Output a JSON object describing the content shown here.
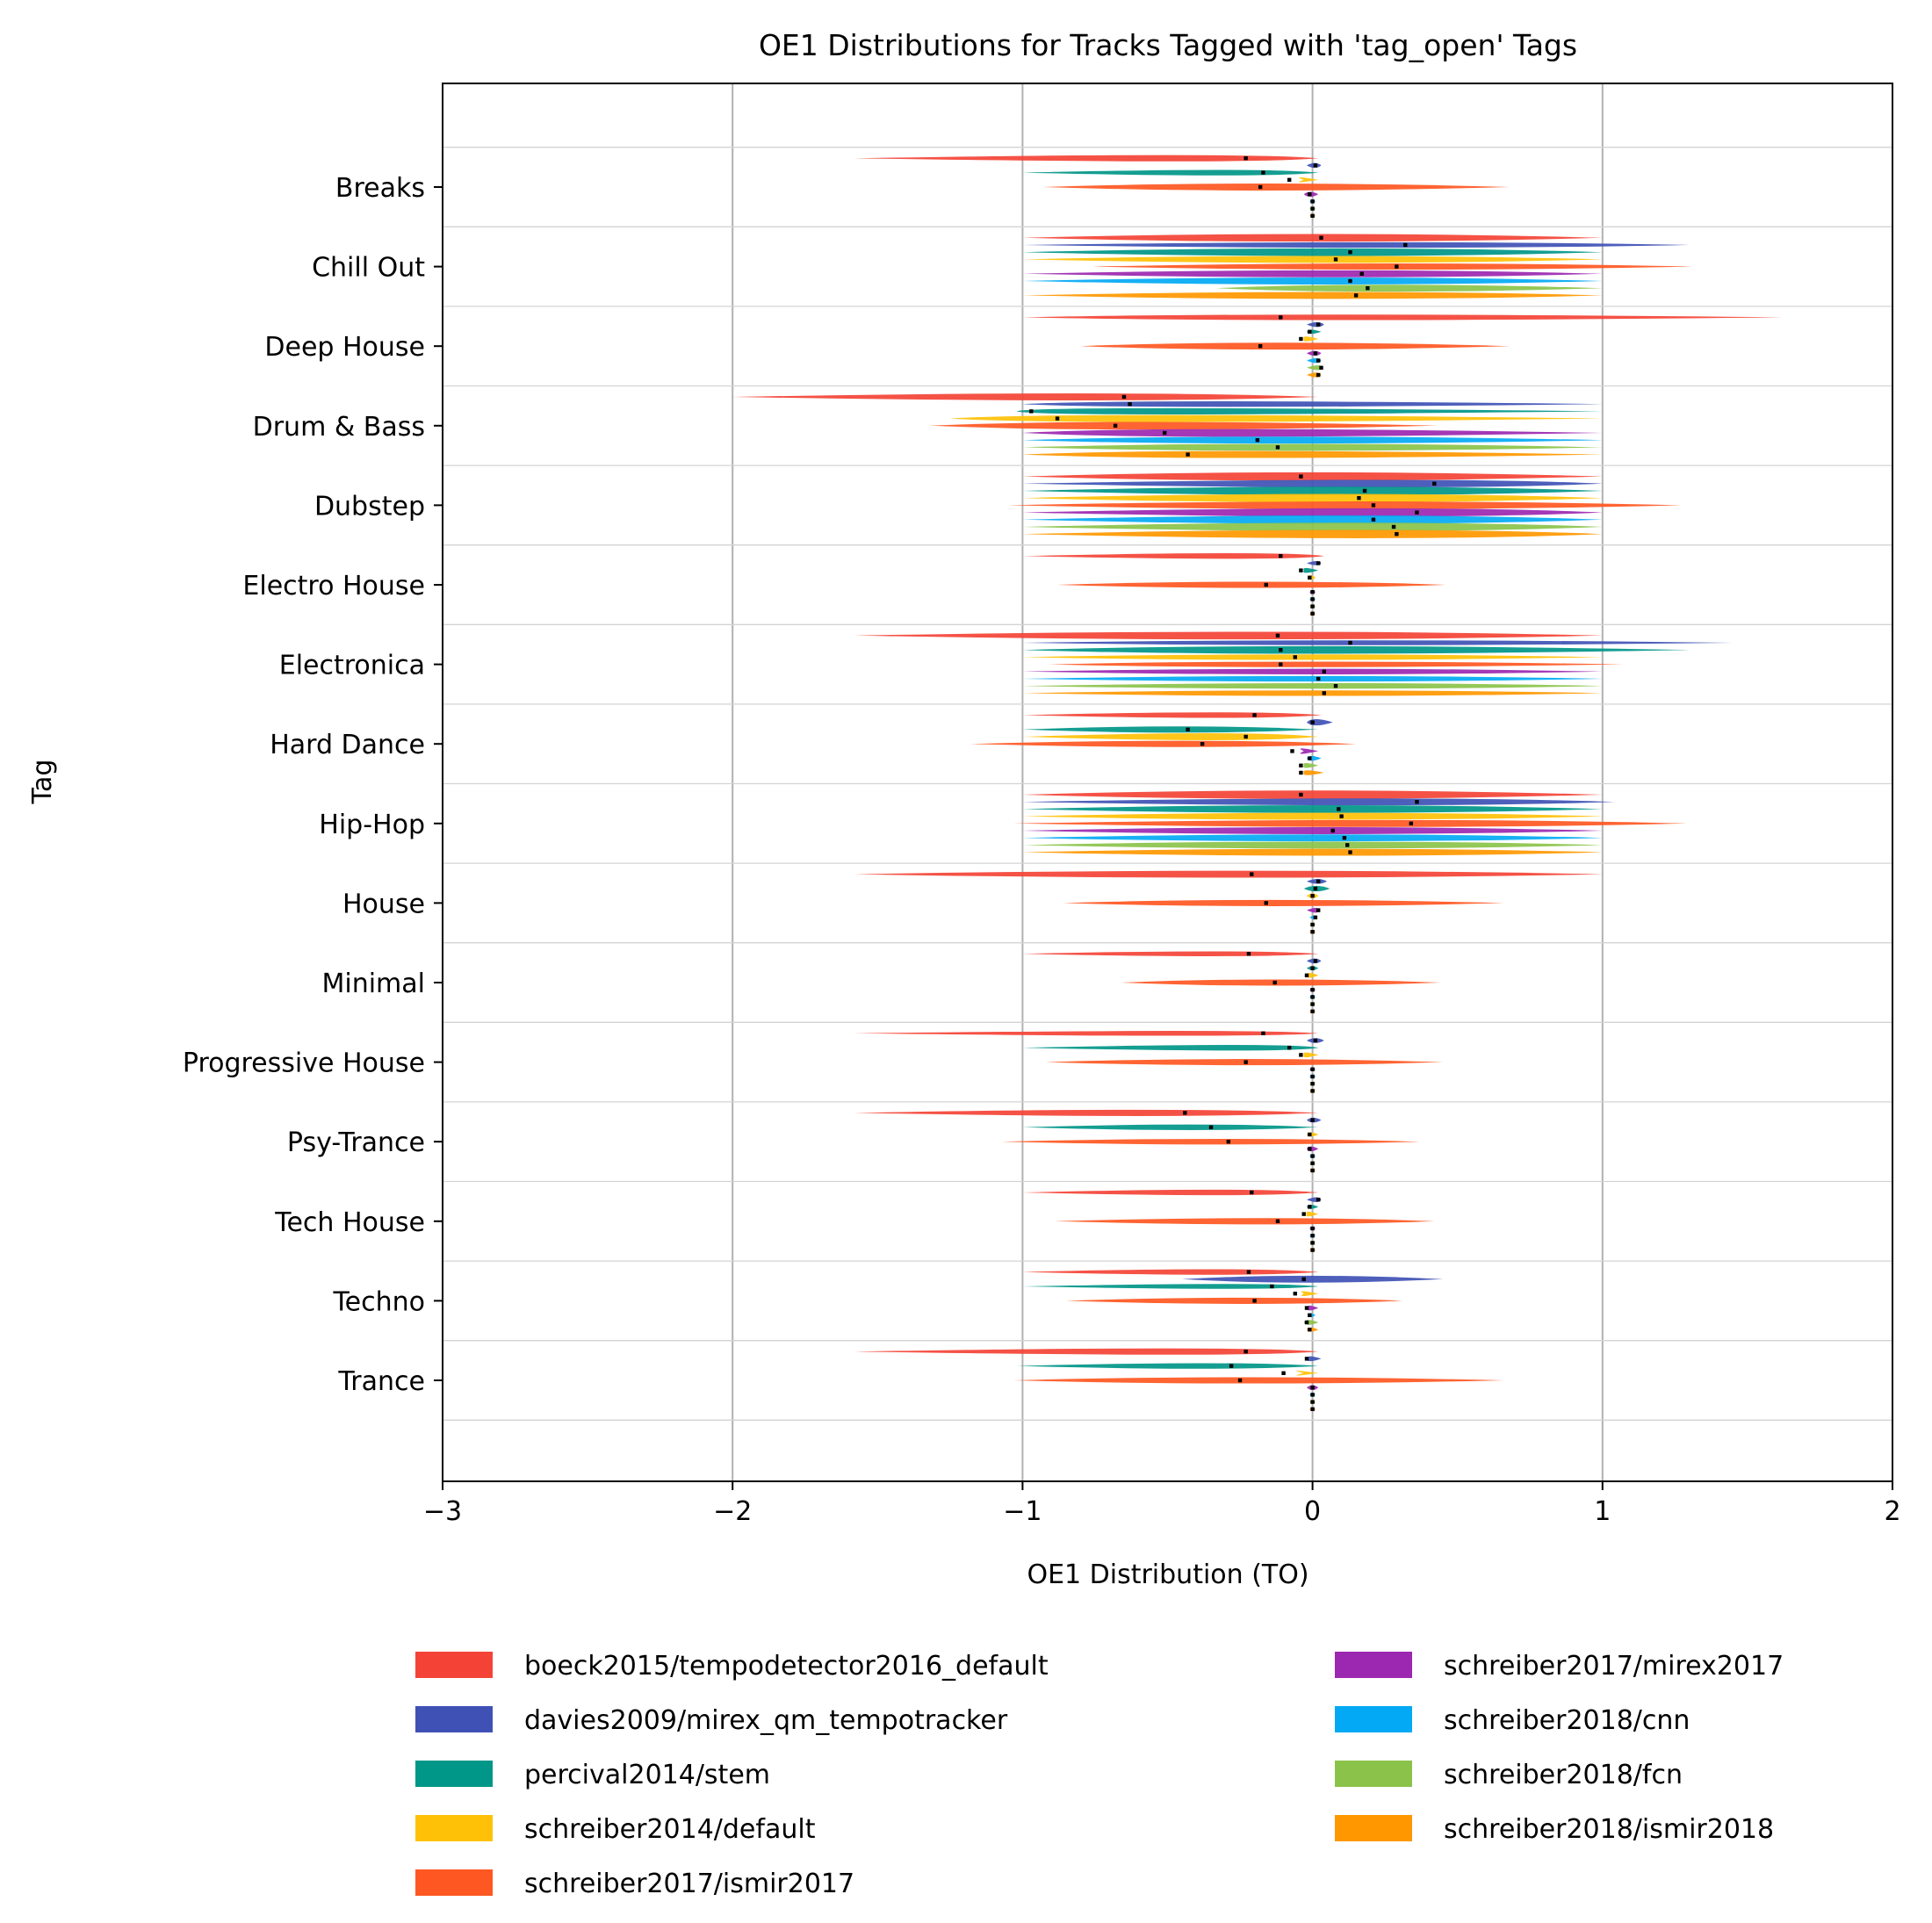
{
  "chart_data": {
    "type": "violin",
    "title": "OE1 Distributions for Tracks Tagged with 'tag_open' Tags",
    "xlabel": "OE1 Distribution (TO)",
    "ylabel": "Tag",
    "xlim": [
      -3,
      2
    ],
    "xticks": [
      -3,
      -2,
      -1,
      0,
      1,
      2
    ],
    "xtick_labels": [
      "−3",
      "−2",
      "−1",
      "0",
      "1",
      "2"
    ],
    "grid": "vertical major + horizontal separators",
    "legend_position": "bottom-center, 2 columns",
    "categories": [
      "Breaks",
      "Chill Out",
      "Deep House",
      "Drum & Bass",
      "Dubstep",
      "Electro House",
      "Electronica",
      "Hard Dance",
      "Hip-Hop",
      "House",
      "Minimal",
      "Progressive House",
      "Psy-Trance",
      "Tech House",
      "Techno",
      "Trance"
    ],
    "series": [
      {
        "name": "boeck2015/tempodetector2016_default",
        "color": "#f44336",
        "medians": [
          -0.23,
          0.03,
          -0.11,
          -0.65,
          -0.04,
          -0.11,
          -0.12,
          -0.2,
          -0.04,
          -0.21,
          -0.22,
          -0.17,
          -0.44,
          -0.21,
          -0.22,
          -0.23
        ],
        "ranges": [
          [
            -1.58,
            0.02
          ],
          [
            -1.0,
            1.0
          ],
          [
            -1.0,
            1.62
          ],
          [
            -2.0,
            0.02
          ],
          [
            -1.0,
            1.0
          ],
          [
            -1.0,
            0.04
          ],
          [
            -1.58,
            1.0
          ],
          [
            -1.0,
            0.03
          ],
          [
            -1.0,
            1.0
          ],
          [
            -1.58,
            1.0
          ],
          [
            -1.0,
            0.02
          ],
          [
            -1.58,
            0.02
          ],
          [
            -1.58,
            0.02
          ],
          [
            -1.0,
            0.02
          ],
          [
            -1.0,
            0.02
          ],
          [
            -1.58,
            0.02
          ]
        ],
        "widths": [
          0.7,
          0.9,
          0.6,
          0.8,
          1.0,
          0.6,
          0.9,
          0.6,
          1.0,
          0.8,
          0.5,
          0.5,
          0.7,
          0.6,
          0.6,
          0.7
        ]
      },
      {
        "name": "davies2009/mirex_qm_tempotracker",
        "color": "#3f51b5",
        "medians": [
          0.01,
          0.32,
          0.02,
          -0.63,
          0.42,
          0.02,
          0.13,
          0.0,
          0.36,
          0.02,
          0.01,
          0.01,
          0.0,
          0.02,
          -0.03,
          -0.02
        ],
        "ranges": [
          [
            -0.02,
            0.03
          ],
          [
            -1.0,
            1.3
          ],
          [
            -0.02,
            0.04
          ],
          [
            -1.0,
            1.0
          ],
          [
            -1.0,
            1.0
          ],
          [
            -0.02,
            0.03
          ],
          [
            -1.0,
            1.45
          ],
          [
            -0.02,
            0.07
          ],
          [
            -1.0,
            1.04
          ],
          [
            -0.02,
            0.05
          ],
          [
            -0.02,
            0.03
          ],
          [
            -0.02,
            0.04
          ],
          [
            -0.02,
            0.03
          ],
          [
            -0.02,
            0.03
          ],
          [
            -0.45,
            0.45
          ],
          [
            -0.02,
            0.03
          ]
        ],
        "widths": [
          0.5,
          0.6,
          0.5,
          0.6,
          0.9,
          0.4,
          0.5,
          0.7,
          0.8,
          0.5,
          0.5,
          0.5,
          0.5,
          0.5,
          0.8,
          0.5
        ]
      },
      {
        "name": "percival2014/stem",
        "color": "#009688",
        "medians": [
          -0.17,
          0.13,
          -0.01,
          -0.97,
          0.18,
          -0.04,
          -0.11,
          -0.43,
          0.09,
          0.01,
          0.0,
          -0.08,
          -0.35,
          -0.01,
          -0.14,
          -0.28
        ],
        "ranges": [
          [
            -1.0,
            0.02
          ],
          [
            -1.0,
            1.0
          ],
          [
            -0.02,
            0.03
          ],
          [
            -1.02,
            1.0
          ],
          [
            -1.0,
            1.0
          ],
          [
            -0.03,
            0.02
          ],
          [
            -1.0,
            1.3
          ],
          [
            -1.0,
            0.02
          ],
          [
            -1.0,
            1.0
          ],
          [
            -0.03,
            0.06
          ],
          [
            -0.02,
            0.02
          ],
          [
            -1.0,
            0.02
          ],
          [
            -1.0,
            0.02
          ],
          [
            -0.02,
            0.02
          ],
          [
            -1.0,
            0.02
          ],
          [
            -1.02,
            0.02
          ]
        ],
        "widths": [
          0.6,
          0.9,
          0.4,
          0.7,
          1.0,
          0.5,
          0.9,
          0.7,
          0.9,
          0.6,
          0.4,
          0.6,
          0.6,
          0.4,
          0.5,
          0.6
        ]
      },
      {
        "name": "schreiber2014/default",
        "color": "#ffc107",
        "medians": [
          -0.08,
          0.08,
          -0.04,
          -0.88,
          0.16,
          -0.01,
          -0.06,
          -0.23,
          0.1,
          0.0,
          -0.02,
          -0.04,
          -0.01,
          -0.03,
          -0.06,
          -0.1
        ],
        "ranges": [
          [
            -0.03,
            0.02
          ],
          [
            -1.0,
            1.0
          ],
          [
            -0.03,
            0.02
          ],
          [
            -1.25,
            1.0
          ],
          [
            -1.0,
            1.0
          ],
          [
            -0.01,
            0.01
          ],
          [
            -1.0,
            1.0
          ],
          [
            -1.0,
            0.02
          ],
          [
            -1.0,
            1.0
          ],
          [
            -0.02,
            0.02
          ],
          [
            -0.02,
            0.02
          ],
          [
            -0.03,
            0.02
          ],
          [
            -0.02,
            0.02
          ],
          [
            -0.02,
            0.02
          ],
          [
            -0.03,
            0.02
          ],
          [
            -0.03,
            0.02
          ]
        ],
        "widths": [
          0.5,
          0.8,
          0.5,
          0.8,
          1.0,
          0.5,
          0.6,
          0.8,
          0.8,
          0.5,
          0.5,
          0.5,
          0.4,
          0.5,
          0.5,
          0.5
        ]
      },
      {
        "name": "schreiber2017/ismir2017",
        "color": "#ff5722",
        "medians": [
          -0.18,
          0.29,
          -0.18,
          -0.68,
          0.21,
          -0.16,
          -0.11,
          -0.38,
          0.34,
          -0.16,
          -0.13,
          -0.23,
          -0.29,
          -0.12,
          -0.2,
          -0.25
        ],
        "ranges": [
          [
            -0.93,
            0.68
          ],
          [
            -0.76,
            1.31
          ],
          [
            -0.8,
            0.68
          ],
          [
            -1.32,
            0.43
          ],
          [
            -1.05,
            1.27
          ],
          [
            -0.88,
            0.46
          ],
          [
            -0.91,
            1.07
          ],
          [
            -1.18,
            0.15
          ],
          [
            -1.03,
            1.29
          ],
          [
            -0.86,
            0.66
          ],
          [
            -0.66,
            0.44
          ],
          [
            -0.92,
            0.45
          ],
          [
            -1.07,
            0.37
          ],
          [
            -0.89,
            0.42
          ],
          [
            -0.85,
            0.31
          ],
          [
            -1.03,
            0.66
          ]
        ],
        "widths": [
          0.8,
          0.7,
          0.8,
          0.9,
          0.9,
          0.7,
          0.6,
          0.7,
          0.8,
          0.7,
          0.7,
          0.7,
          0.6,
          0.7,
          0.7,
          0.7
        ]
      },
      {
        "name": "schreiber2017/mirex2017",
        "color": "#9c27b0",
        "medians": [
          -0.01,
          0.17,
          0.01,
          -0.51,
          0.36,
          0.0,
          0.04,
          -0.07,
          0.07,
          0.02,
          0.0,
          0.0,
          -0.01,
          0.0,
          -0.02,
          0.0
        ],
        "ranges": [
          [
            -0.03,
            0.02
          ],
          [
            -1.0,
            1.0
          ],
          [
            -0.02,
            0.03
          ],
          [
            -1.0,
            1.0
          ],
          [
            -1.0,
            1.0
          ],
          [
            -0.01,
            0.01
          ],
          [
            -1.0,
            1.0
          ],
          [
            -0.03,
            0.02
          ],
          [
            -1.0,
            1.0
          ],
          [
            -0.02,
            0.02
          ],
          [
            -0.01,
            0.01
          ],
          [
            -0.01,
            0.01
          ],
          [
            -0.02,
            0.02
          ],
          [
            -0.01,
            0.01
          ],
          [
            -0.02,
            0.02
          ],
          [
            -0.02,
            0.02
          ]
        ],
        "widths": [
          0.5,
          0.8,
          0.5,
          0.9,
          1.0,
          0.4,
          0.6,
          0.6,
          0.8,
          0.5,
          0.4,
          0.4,
          0.5,
          0.4,
          0.5,
          0.5
        ]
      },
      {
        "name": "schreiber2018/cnn",
        "color": "#03a9f4",
        "medians": [
          0.0,
          0.13,
          0.02,
          -0.19,
          0.21,
          0.0,
          0.02,
          -0.01,
          0.11,
          0.01,
          0.0,
          0.0,
          0.0,
          0.0,
          -0.01,
          0.0
        ],
        "ranges": [
          [
            -0.01,
            0.01
          ],
          [
            -1.0,
            1.0
          ],
          [
            -0.02,
            0.03
          ],
          [
            -1.0,
            1.0
          ],
          [
            -1.0,
            1.0
          ],
          [
            -0.01,
            0.01
          ],
          [
            -1.0,
            1.0
          ],
          [
            -0.02,
            0.03
          ],
          [
            -1.0,
            1.0
          ],
          [
            -0.01,
            0.01
          ],
          [
            -0.01,
            0.01
          ],
          [
            -0.01,
            0.01
          ],
          [
            -0.01,
            0.01
          ],
          [
            -0.01,
            0.01
          ],
          [
            -0.01,
            0.01
          ],
          [
            -0.01,
            0.01
          ]
        ],
        "widths": [
          0.4,
          0.8,
          0.5,
          0.8,
          1.0,
          0.4,
          0.6,
          0.5,
          0.8,
          0.4,
          0.4,
          0.4,
          0.4,
          0.4,
          0.4,
          0.4
        ]
      },
      {
        "name": "schreiber2018/fcn",
        "color": "#8bc34a",
        "medians": [
          0.0,
          0.19,
          0.03,
          -0.12,
          0.28,
          0.0,
          0.08,
          -0.04,
          0.12,
          0.0,
          0.0,
          0.0,
          0.0,
          0.0,
          -0.02,
          0.0
        ],
        "ranges": [
          [
            -0.01,
            0.01
          ],
          [
            -0.33,
            1.0
          ],
          [
            -0.02,
            0.03
          ],
          [
            -1.0,
            1.0
          ],
          [
            -1.0,
            1.0
          ],
          [
            -0.01,
            0.01
          ],
          [
            -1.0,
            1.0
          ],
          [
            -0.03,
            0.02
          ],
          [
            -1.0,
            1.0
          ],
          [
            -0.01,
            0.01
          ],
          [
            -0.01,
            0.01
          ],
          [
            -0.01,
            0.01
          ],
          [
            -0.01,
            0.01
          ],
          [
            -0.01,
            0.01
          ],
          [
            -0.03,
            0.02
          ],
          [
            -0.01,
            0.01
          ]
        ],
        "widths": [
          0.4,
          0.8,
          0.5,
          0.8,
          1.0,
          0.4,
          0.6,
          0.5,
          0.8,
          0.4,
          0.4,
          0.4,
          0.4,
          0.4,
          0.5,
          0.4
        ]
      },
      {
        "name": "schreiber2018/ismir2018",
        "color": "#ff9800",
        "medians": [
          0.0,
          0.15,
          0.02,
          -0.43,
          0.29,
          0.0,
          0.04,
          -0.04,
          0.13,
          0.0,
          0.0,
          0.0,
          0.0,
          0.0,
          -0.01,
          0.0
        ],
        "ranges": [
          [
            -0.01,
            0.01
          ],
          [
            -1.0,
            1.0
          ],
          [
            -0.02,
            0.03
          ],
          [
            -1.0,
            1.0
          ],
          [
            -1.0,
            1.0
          ],
          [
            -0.01,
            0.01
          ],
          [
            -1.0,
            1.0
          ],
          [
            -0.03,
            0.04
          ],
          [
            -1.0,
            1.0
          ],
          [
            -0.01,
            0.01
          ],
          [
            -0.01,
            0.01
          ],
          [
            -0.01,
            0.01
          ],
          [
            -0.01,
            0.01
          ],
          [
            -0.01,
            0.01
          ],
          [
            -0.02,
            0.02
          ],
          [
            -0.01,
            0.01
          ]
        ],
        "widths": [
          0.4,
          0.8,
          0.5,
          0.8,
          1.0,
          0.4,
          0.6,
          0.5,
          0.8,
          0.4,
          0.4,
          0.4,
          0.4,
          0.4,
          0.4,
          0.4
        ]
      }
    ]
  }
}
